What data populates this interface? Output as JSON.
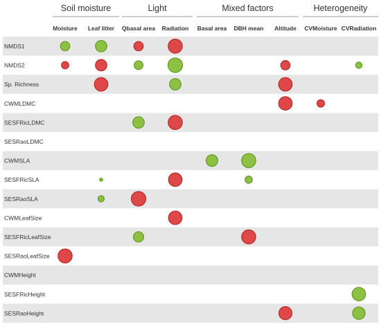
{
  "chart_data": {
    "type": "bubble-matrix",
    "groups": [
      {
        "name": "Soil moisture",
        "columns": [
          "Moisture",
          "Leaf litter"
        ]
      },
      {
        "name": "Light",
        "columns": [
          "Qbasal area",
          "Radiation"
        ]
      },
      {
        "name": "Mixed factors",
        "columns": [
          "Basal area",
          "DBH mean",
          "Altitude"
        ]
      },
      {
        "name": "Heterogeneity",
        "columns": [
          "CVMoisture",
          "CVRadiation"
        ]
      }
    ],
    "columns": [
      "Moisture",
      "Leaf litter",
      "Qbasal area",
      "Radiation",
      "Basal area",
      "DBH mean",
      "Altitude",
      "CVMoisture",
      "CVRadiation"
    ],
    "rows": [
      "NMDS1",
      "NMDS2",
      "Sp. Richness",
      "CWMLDMC",
      "SESFRicLDMC",
      "SESRaoLDMC",
      "CWMSLA",
      "SESFRicSLA",
      "SESRaoSLA",
      "CWMLeafSize",
      "SESFRicLeafSize",
      "SESRaoLeafSize",
      "CWMHeight",
      "SESFRicHeight",
      "SESRaoHeight"
    ],
    "colors": {
      "positive": "#8dc043",
      "negative": "#de4848",
      "positive_edge": "#5f9a24",
      "negative_edge": "#b52a2a",
      "stripe": "#e6e6e6",
      "group_line": "#9a9a9a",
      "text": "#333333"
    },
    "cells": [
      {
        "row": "NMDS1",
        "column": "Moisture",
        "sign": "positive",
        "magnitude": 0.45
      },
      {
        "row": "NMDS1",
        "column": "Leaf litter",
        "sign": "positive",
        "magnitude": 0.55
      },
      {
        "row": "NMDS1",
        "column": "Qbasal area",
        "sign": "negative",
        "magnitude": 0.45
      },
      {
        "row": "NMDS1",
        "column": "Radiation",
        "sign": "negative",
        "magnitude": 0.68
      },
      {
        "row": "NMDS2",
        "column": "Moisture",
        "sign": "negative",
        "magnitude": 0.35
      },
      {
        "row": "NMDS2",
        "column": "Leaf litter",
        "sign": "negative",
        "magnitude": 0.55
      },
      {
        "row": "NMDS2",
        "column": "Qbasal area",
        "sign": "positive",
        "magnitude": 0.42
      },
      {
        "row": "NMDS2",
        "column": "Radiation",
        "sign": "positive",
        "magnitude": 0.7
      },
      {
        "row": "NMDS2",
        "column": "Altitude",
        "sign": "negative",
        "magnitude": 0.45
      },
      {
        "row": "NMDS2",
        "column": "CVRadiation",
        "sign": "positive",
        "magnitude": 0.3
      },
      {
        "row": "Sp. Richness",
        "column": "Leaf litter",
        "sign": "negative",
        "magnitude": 0.65
      },
      {
        "row": "Sp. Richness",
        "column": "Radiation",
        "sign": "positive",
        "magnitude": 0.55
      },
      {
        "row": "Sp. Richness",
        "column": "Altitude",
        "sign": "negative",
        "magnitude": 0.65
      },
      {
        "row": "CWMLDMC",
        "column": "Altitude",
        "sign": "negative",
        "magnitude": 0.65
      },
      {
        "row": "CWMLDMC",
        "column": "CVMoisture",
        "sign": "negative",
        "magnitude": 0.36
      },
      {
        "row": "SESFRicLDMC",
        "column": "Qbasal area",
        "sign": "positive",
        "magnitude": 0.55
      },
      {
        "row": "SESFRicLDMC",
        "column": "Radiation",
        "sign": "negative",
        "magnitude": 0.68
      },
      {
        "row": "CWMSLA",
        "column": "Basal area",
        "sign": "positive",
        "magnitude": 0.56
      },
      {
        "row": "CWMSLA",
        "column": "DBH mean",
        "sign": "positive",
        "magnitude": 0.68
      },
      {
        "row": "SESFRicSLA",
        "column": "Leaf litter",
        "sign": "positive",
        "magnitude": 0.15
      },
      {
        "row": "SESFRicSLA",
        "column": "Radiation",
        "sign": "negative",
        "magnitude": 0.65
      },
      {
        "row": "SESFRicSLA",
        "column": "DBH mean",
        "sign": "positive",
        "magnitude": 0.35
      },
      {
        "row": "SESRaoSLA",
        "column": "Leaf litter",
        "sign": "positive",
        "magnitude": 0.3
      },
      {
        "row": "SESRaoSLA",
        "column": "Qbasal area",
        "sign": "negative",
        "magnitude": 0.7
      },
      {
        "row": "CWMLeafSize",
        "column": "Radiation",
        "sign": "negative",
        "magnitude": 0.65
      },
      {
        "row": "SESFRicLeafSize",
        "column": "Qbasal area",
        "sign": "positive",
        "magnitude": 0.5
      },
      {
        "row": "SESFRicLeafSize",
        "column": "DBH mean",
        "sign": "negative",
        "magnitude": 0.68
      },
      {
        "row": "SESRaoLeafSize",
        "column": "Moisture",
        "sign": "negative",
        "magnitude": 0.68
      },
      {
        "row": "SESFRicHeight",
        "column": "CVRadiation",
        "sign": "positive",
        "magnitude": 0.65
      },
      {
        "row": "SESRaoHeight",
        "column": "Altitude",
        "sign": "negative",
        "magnitude": 0.63
      },
      {
        "row": "SESRaoHeight",
        "column": "CVRadiation",
        "sign": "positive",
        "magnitude": 0.6
      }
    ]
  }
}
